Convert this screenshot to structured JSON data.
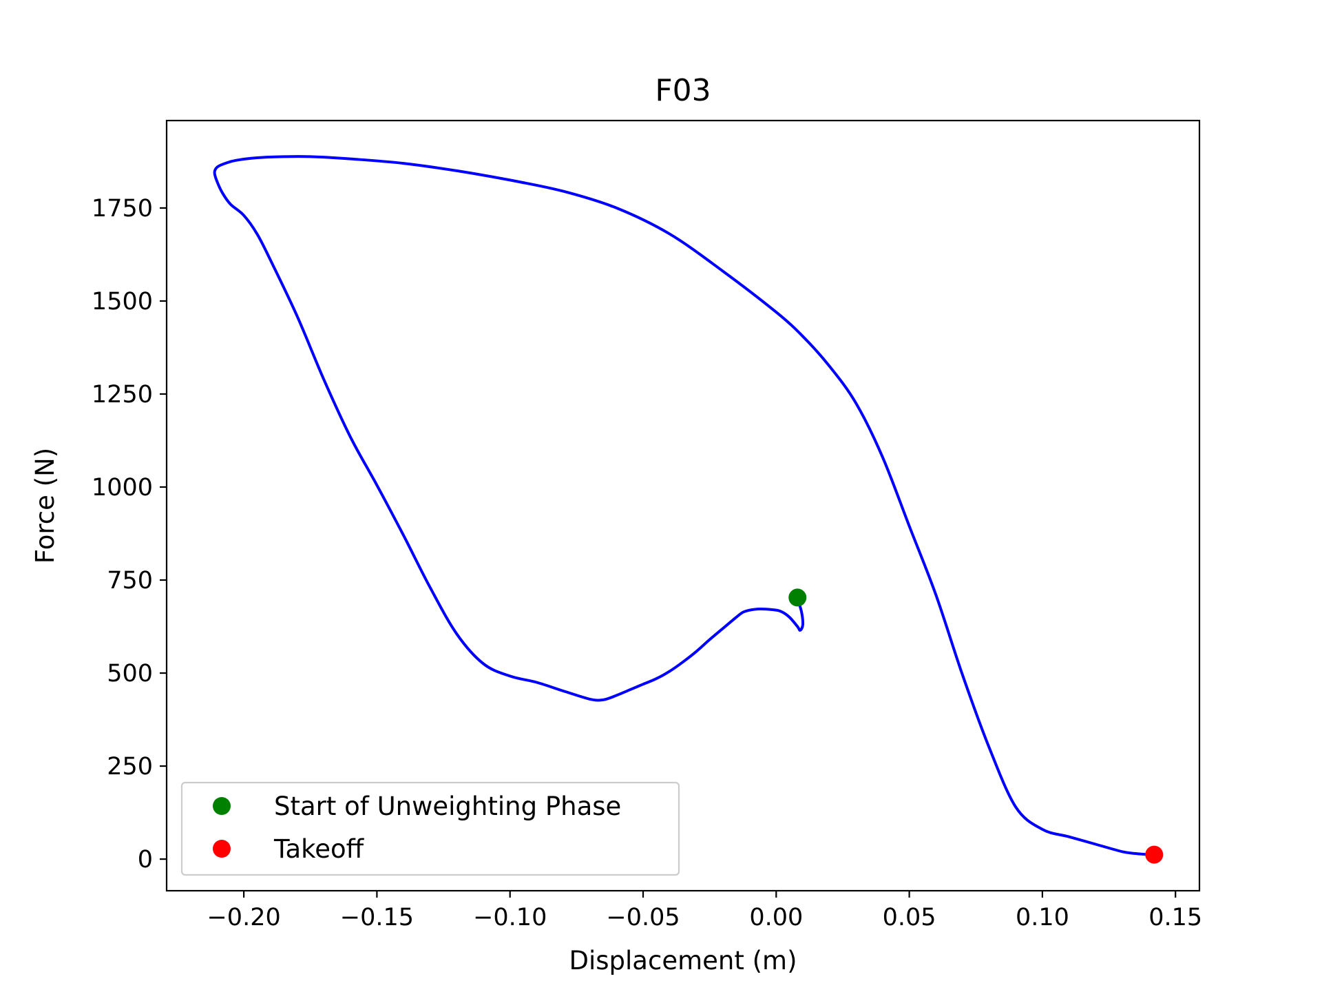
{
  "chart_data": {
    "type": "line",
    "title": "F03",
    "xlabel": "Displacement (m)",
    "ylabel": "Force (N)",
    "xlim": [
      -0.229,
      0.159
    ],
    "ylim": [
      -85,
      1985
    ],
    "xticks": [
      -0.2,
      -0.15,
      -0.1,
      -0.05,
      0.0,
      0.05,
      0.1,
      0.15
    ],
    "xtick_labels": [
      "−0.20",
      "−0.15",
      "−0.10",
      "−0.05",
      "0.00",
      "0.05",
      "0.10",
      "0.15"
    ],
    "yticks": [
      0,
      250,
      500,
      750,
      1000,
      1250,
      1500,
      1750
    ],
    "ytick_labels": [
      "0",
      "250",
      "500",
      "750",
      "1000",
      "1250",
      "1500",
      "1750"
    ],
    "grid": false,
    "legend_position": "lower-left",
    "series": [
      {
        "color": "#0000ff",
        "x": [
          0.008,
          0.0095,
          0.01,
          0.009,
          0.008,
          0.005,
          0.002,
          -0.001,
          -0.007,
          -0.012,
          -0.015,
          -0.02,
          -0.025,
          -0.03,
          -0.035,
          -0.04,
          -0.045,
          -0.05,
          -0.055,
          -0.06,
          -0.065,
          -0.07,
          -0.08,
          -0.09,
          -0.1,
          -0.11,
          -0.12,
          -0.13,
          -0.14,
          -0.15,
          -0.16,
          -0.17,
          -0.18,
          -0.19,
          -0.195,
          -0.2,
          -0.205,
          -0.208,
          -0.21,
          -0.211,
          -0.21,
          -0.207,
          -0.203,
          -0.195,
          -0.185,
          -0.175,
          -0.16,
          -0.14,
          -0.12,
          -0.1,
          -0.08,
          -0.06,
          -0.04,
          -0.02,
          0.0,
          0.01,
          0.02,
          0.03,
          0.04,
          0.05,
          0.06,
          0.07,
          0.08,
          0.09,
          0.1,
          0.11,
          0.12,
          0.13,
          0.135,
          0.14,
          0.142
        ],
        "y": [
          700,
          665,
          630,
          615,
          625,
          650,
          665,
          670,
          672,
          665,
          650,
          620,
          590,
          558,
          530,
          505,
          485,
          470,
          455,
          440,
          428,
          430,
          452,
          475,
          492,
          525,
          605,
          730,
          870,
          1005,
          1135,
          1290,
          1460,
          1610,
          1680,
          1730,
          1760,
          1790,
          1820,
          1845,
          1860,
          1870,
          1878,
          1885,
          1888,
          1888,
          1882,
          1870,
          1850,
          1825,
          1795,
          1750,
          1680,
          1580,
          1470,
          1405,
          1325,
          1225,
          1080,
          895,
          710,
          495,
          300,
          140,
          80,
          60,
          40,
          20,
          15,
          12,
          10
        ]
      }
    ],
    "markers": [
      {
        "label": "Start of Unweighting Phase",
        "x": 0.008,
        "y": 703,
        "color": "#008000"
      },
      {
        "label": "Takeoff",
        "x": 0.142,
        "y": 12,
        "color": "#ff0000"
      }
    ]
  }
}
